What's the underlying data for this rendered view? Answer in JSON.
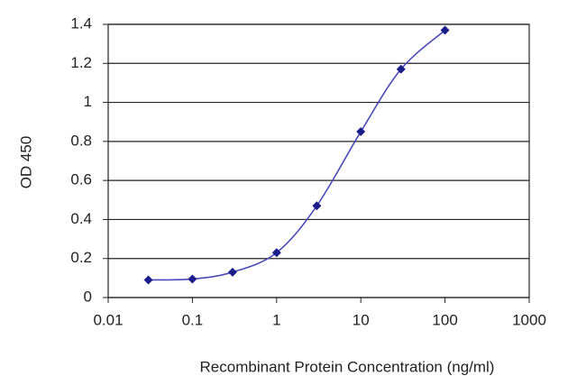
{
  "chart_data": {
    "type": "line",
    "x_label": "Recombinant Protein Concentration (ng/ml)",
    "y_label": "OD 450",
    "x": [
      0.03,
      0.1,
      0.3,
      1,
      3,
      10,
      30,
      100
    ],
    "series": [
      {
        "color": "#1c1c8a",
        "values": [
          0.09,
          0.095,
          0.13,
          0.23,
          0.47,
          0.85,
          1.17,
          1.37
        ]
      }
    ],
    "x_log": true,
    "xlim": [
      0.01,
      1000
    ],
    "xticks": [
      0.01,
      0.1,
      1,
      10,
      100,
      1000
    ],
    "ylim": [
      0,
      1.4
    ],
    "yticks": [
      0,
      0.2,
      0.4,
      0.6,
      0.8,
      1,
      1.2,
      1.4
    ],
    "grid": true
  }
}
